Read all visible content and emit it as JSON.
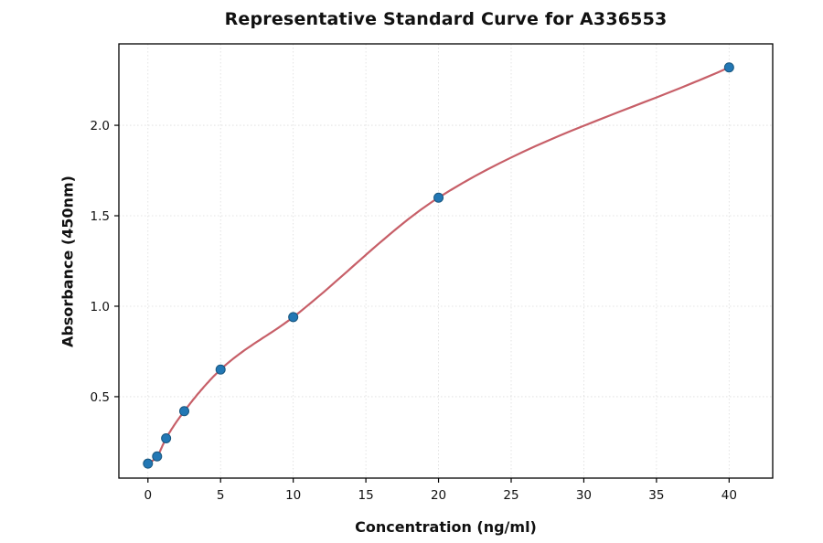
{
  "title": "Representative Standard Curve for A336553",
  "chart_data": {
    "type": "scatter",
    "title": "Representative Standard Curve for A336553",
    "xlabel": "Concentration (ng/ml)",
    "ylabel": "Absorbance (450nm)",
    "xlim": [
      -2,
      43
    ],
    "ylim": [
      0.05,
      2.45
    ],
    "x_ticks": [
      0,
      5,
      10,
      15,
      20,
      25,
      30,
      35,
      40
    ],
    "y_ticks": [
      0.5,
      1.0,
      1.5,
      2.0
    ],
    "grid": true,
    "grid_color": "#dcdcdc",
    "axis_color": "#000000",
    "background": "#ffffff",
    "legend": "none",
    "series": [
      {
        "name": "fit-curve",
        "type": "line",
        "color": "#c75f68",
        "width": 2.2,
        "x": [
          0,
          0.63,
          1.25,
          2.5,
          5,
          10,
          20,
          40
        ],
        "y": [
          0.13,
          0.17,
          0.27,
          0.42,
          0.65,
          0.94,
          1.6,
          2.32
        ]
      },
      {
        "name": "standard-points",
        "type": "scatter",
        "color": "#2277b4",
        "edge_color": "#17567f",
        "radius": 5,
        "x": [
          0,
          0.63,
          1.25,
          2.5,
          5,
          10,
          20,
          40
        ],
        "y": [
          0.13,
          0.17,
          0.27,
          0.42,
          0.65,
          0.94,
          1.6,
          2.32
        ]
      }
    ]
  }
}
